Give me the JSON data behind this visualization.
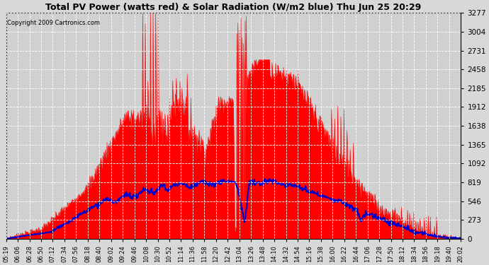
{
  "title": "Total PV Power (watts red) & Solar Radiation (W/m2 blue) Thu Jun 25 20:29",
  "copyright": "Copyright 2009 Cartronics.com",
  "y_ticks": [
    0.0,
    273.1,
    546.2,
    819.2,
    1092.3,
    1365.4,
    1638.5,
    1911.5,
    2184.6,
    2457.7,
    2730.8,
    3003.8,
    3276.9
  ],
  "x_labels": [
    "05:19",
    "06:06",
    "06:28",
    "06:50",
    "07:12",
    "07:34",
    "07:56",
    "08:18",
    "08:40",
    "09:02",
    "09:24",
    "09:46",
    "10:08",
    "10:30",
    "10:52",
    "11:14",
    "11:36",
    "11:58",
    "12:20",
    "12:42",
    "13:04",
    "13:26",
    "13:48",
    "14:10",
    "14:32",
    "14:54",
    "15:16",
    "15:38",
    "16:00",
    "16:22",
    "16:44",
    "17:06",
    "17:28",
    "17:50",
    "18:12",
    "18:34",
    "18:56",
    "19:18",
    "19:40",
    "20:02"
  ],
  "bg_color": "#d8d8d8",
  "plot_bg_color": "#d0d0d0",
  "grid_color": "#ffffff",
  "title_color": "#000000",
  "red_fill_color": "#ff0000",
  "blue_line_color": "#0000cc",
  "ymax": 3276.9,
  "ymin": 0.0
}
